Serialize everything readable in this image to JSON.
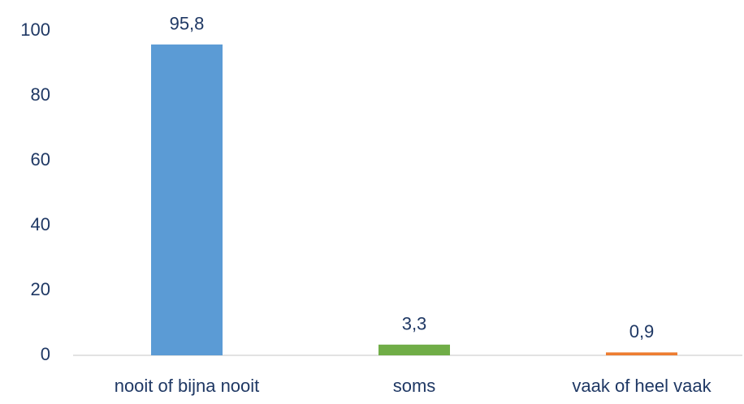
{
  "chart_data": {
    "type": "bar",
    "categories": [
      "nooit of bijna nooit",
      "soms",
      "vaak of heel vaak"
    ],
    "values": [
      95.8,
      3.3,
      0.9
    ],
    "value_labels": [
      "95,8",
      "3,3",
      "0,9"
    ],
    "colors": [
      "#5b9bd5",
      "#70ad47",
      "#ed7d31"
    ],
    "ylim": [
      0,
      100
    ],
    "yticks": [
      0,
      20,
      40,
      60,
      80,
      100
    ],
    "grid": false
  }
}
